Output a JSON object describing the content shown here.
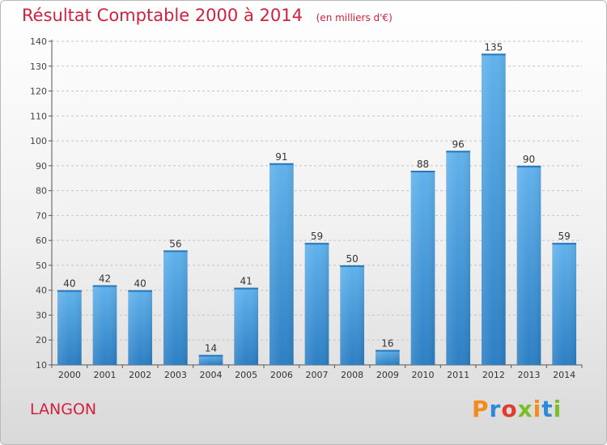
{
  "header": {
    "title": "Résultat Comptable 2000 à 2014",
    "subtitle": "(en milliers d'€)"
  },
  "footer": {
    "commune": "LANGON",
    "brand": "Proxiti",
    "brand_colors": [
      "#f28c1e",
      "#2e8ad8",
      "#e03c31",
      "#7abf2a",
      "#f28c1e",
      "#2e8ad8",
      "#7abf2a"
    ]
  },
  "chart_data": {
    "type": "bar",
    "title": "Résultat Comptable 2000 à 2014",
    "subtitle": "(en milliers d'€)",
    "xlabel": "",
    "ylabel": "",
    "categories": [
      "2000",
      "2001",
      "2002",
      "2003",
      "2004",
      "2005",
      "2006",
      "2007",
      "2008",
      "2009",
      "2010",
      "2011",
      "2012",
      "2013",
      "2014"
    ],
    "values": [
      40,
      42,
      40,
      56,
      14,
      41,
      91,
      59,
      50,
      16,
      88,
      96,
      135,
      90,
      59
    ],
    "ylim": [
      10,
      140
    ],
    "yticks": [
      10,
      20,
      30,
      40,
      50,
      60,
      70,
      80,
      90,
      100,
      110,
      120,
      130,
      140
    ],
    "grid": "horizontal-dashed",
    "bar_color": "#3a93d6",
    "bar_color_light": "#5fb0ea",
    "legend": "none"
  }
}
